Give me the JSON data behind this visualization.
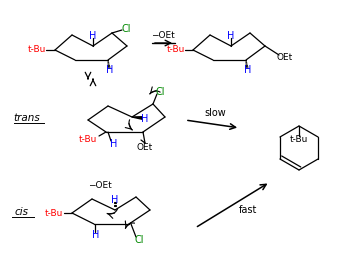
{
  "bg_color": "#ffffff",
  "tBu_color": "#ff0000",
  "H_color": "#0000ff",
  "Cl_color": "#008800",
  "bk_color": "#000000",
  "label_trans": "trans",
  "label_cis": "cis",
  "arrow_slow": "slow",
  "arrow_fast": "fast",
  "arrow_OEt_top": "−OEt",
  "figsize": [
    3.5,
    2.66
  ],
  "dpi": 100
}
